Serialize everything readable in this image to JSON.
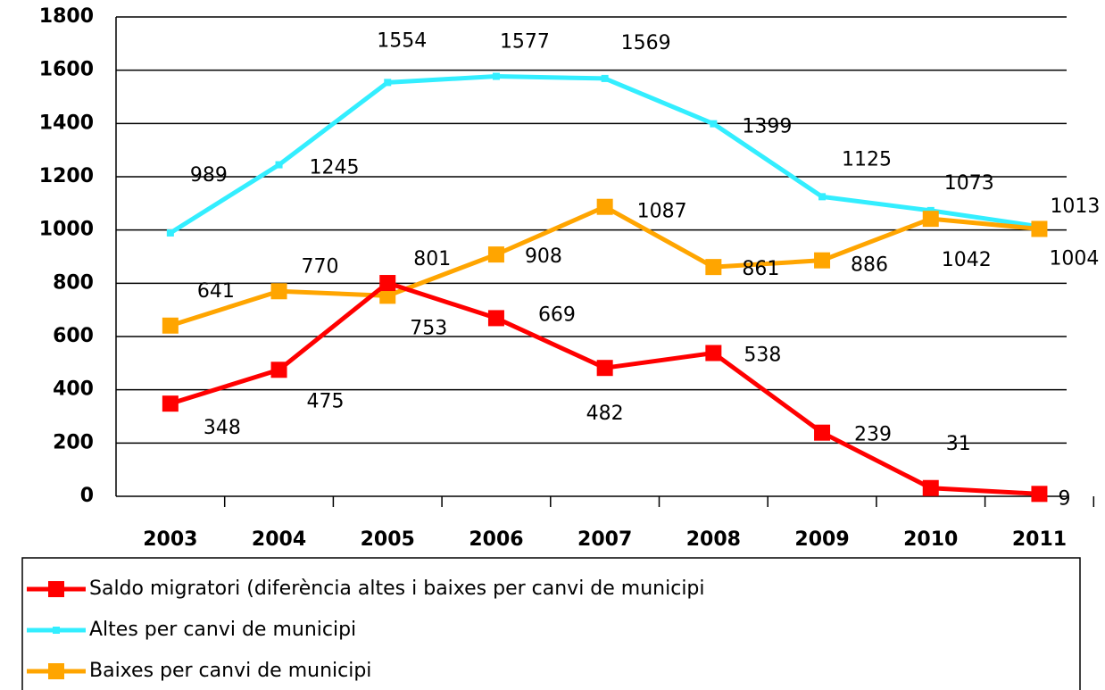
{
  "chart_data": {
    "type": "line",
    "categories": [
      "2003",
      "2004",
      "2005",
      "2006",
      "2007",
      "2008",
      "2009",
      "2010",
      "2011"
    ],
    "series": [
      {
        "name": "Saldo migratori (diferència altes i baixes per canvi de municipi",
        "color": "#ff0000",
        "values": [
          348,
          475,
          801,
          669,
          482,
          538,
          239,
          31,
          9
        ]
      },
      {
        "name": "Altes per canvi de municipi",
        "color": "#33eeff",
        "values": [
          989,
          1245,
          1554,
          1577,
          1569,
          1399,
          1125,
          1073,
          1013
        ]
      },
      {
        "name": "Baixes per canvi de municipi",
        "color": "#ffa500",
        "values": [
          641,
          770,
          753,
          908,
          1087,
          861,
          886,
          1042,
          1004
        ]
      }
    ],
    "ylim": [
      0,
      1800
    ],
    "yticks": [
      0,
      200,
      400,
      600,
      800,
      1000,
      1200,
      1400,
      1600,
      1800
    ],
    "grid": true,
    "legend": "bottom"
  }
}
